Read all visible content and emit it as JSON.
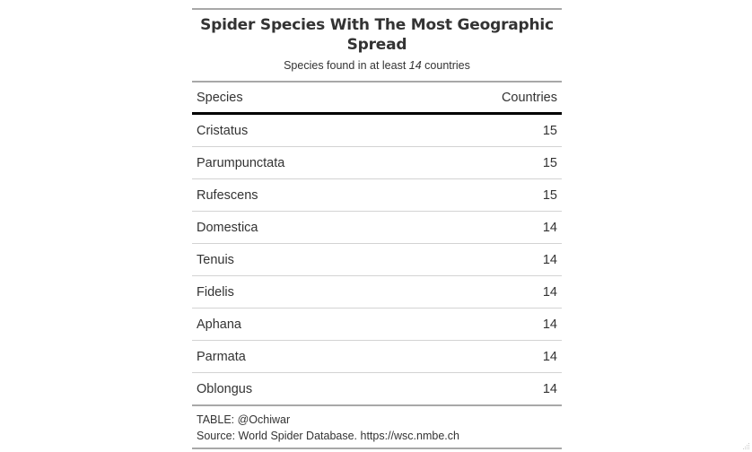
{
  "chart_data": {
    "type": "table",
    "title": "Spider Species With The Most Geographic Spread",
    "subtitle": {
      "prefix": "Species found in at least ",
      "highlight": "14",
      "suffix": " countries"
    },
    "columns": [
      "Species",
      "Countries"
    ],
    "rows": [
      {
        "species": "Cristatus",
        "countries": 15
      },
      {
        "species": "Parumpunctata",
        "countries": 15
      },
      {
        "species": "Rufescens",
        "countries": 15
      },
      {
        "species": "Domestica",
        "countries": 14
      },
      {
        "species": "Tenuis",
        "countries": 14
      },
      {
        "species": "Fidelis",
        "countries": 14
      },
      {
        "species": "Aphana",
        "countries": 14
      },
      {
        "species": "Parmata",
        "countries": 14
      },
      {
        "species": "Oblongus",
        "countries": 14
      }
    ],
    "footer": {
      "credit": "TABLE: @Ochiwar",
      "source": "Source: World Spider Database. https://wsc.nmbe.ch"
    }
  }
}
